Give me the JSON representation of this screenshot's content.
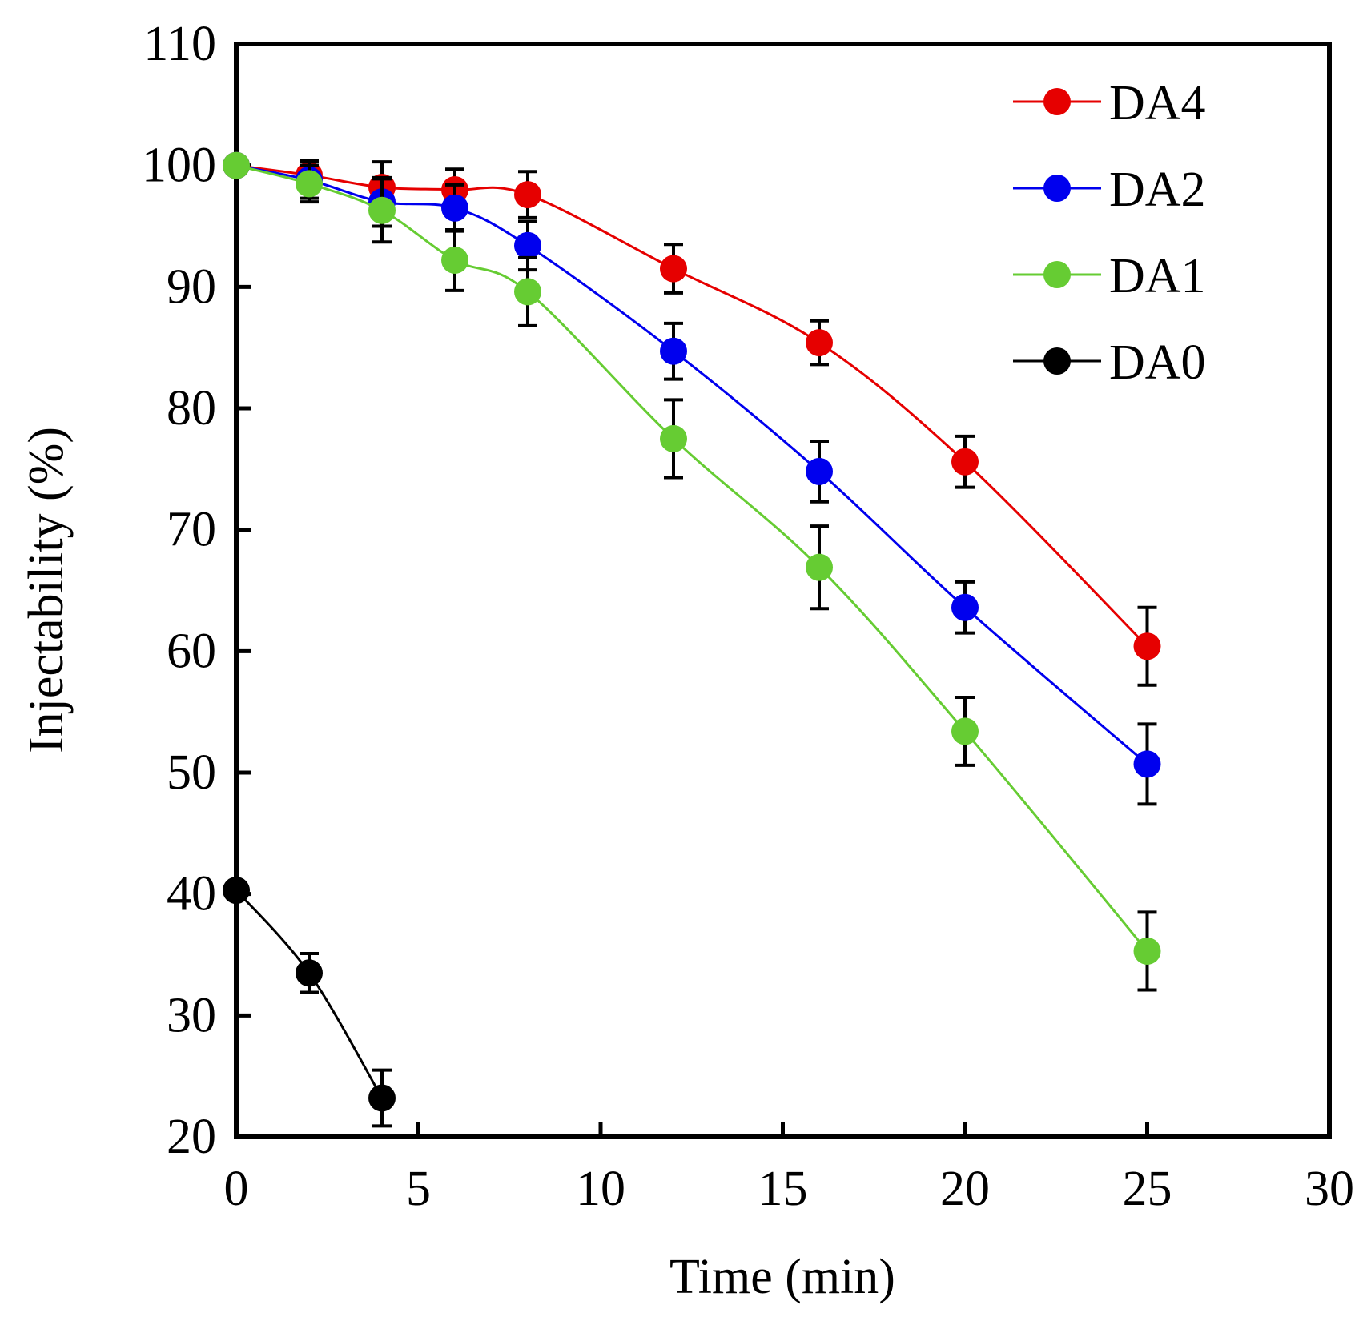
{
  "chart_data": {
    "type": "line",
    "title": "",
    "xlabel": "Time (min)",
    "ylabel": "Injectability (%)",
    "xlim": [
      0,
      30
    ],
    "ylim": [
      20,
      110
    ],
    "xticks": [
      0,
      5,
      10,
      15,
      20,
      25,
      30
    ],
    "yticks": [
      20,
      30,
      40,
      50,
      60,
      70,
      80,
      90,
      100,
      110
    ],
    "xtick_labels": [
      "0",
      "5",
      "10",
      "15",
      "20",
      "25",
      "30"
    ],
    "ytick_labels": [
      "20",
      "30",
      "40",
      "50",
      "60",
      "70",
      "80",
      "90",
      "100",
      "110"
    ],
    "grid": false,
    "legend_position": "top-right",
    "series": [
      {
        "name": "DA4",
        "color": "#e60000",
        "x": [
          0,
          2,
          4,
          6,
          8,
          12,
          16,
          20,
          25
        ],
        "y": [
          100,
          99.2,
          98.2,
          98.0,
          97.6,
          91.5,
          85.4,
          75.6,
          60.4
        ],
        "err": [
          0,
          1.2,
          2.1,
          1.7,
          1.9,
          2.0,
          1.8,
          2.1,
          3.2
        ]
      },
      {
        "name": "DA2",
        "color": "#0000ee",
        "x": [
          0,
          2,
          4,
          6,
          8,
          12,
          16,
          20,
          25
        ],
        "y": [
          100,
          98.8,
          97.0,
          96.5,
          93.4,
          84.7,
          74.8,
          63.6,
          50.7
        ],
        "err": [
          0,
          1.5,
          2.0,
          1.9,
          2.0,
          2.3,
          2.5,
          2.1,
          3.3
        ]
      },
      {
        "name": "DA1",
        "color": "#66cc33",
        "x": [
          0,
          2,
          4,
          6,
          8,
          12,
          16,
          20,
          25
        ],
        "y": [
          100,
          98.5,
          96.3,
          92.2,
          89.6,
          77.5,
          66.9,
          53.4,
          35.3
        ],
        "err": [
          0,
          1.5,
          2.6,
          2.5,
          2.8,
          3.2,
          3.4,
          2.8,
          3.2
        ]
      },
      {
        "name": "DA0",
        "color": "#000000",
        "x": [
          0,
          2,
          4
        ],
        "y": [
          40.3,
          33.5,
          23.2
        ],
        "err": [
          0,
          1.6,
          2.3
        ]
      }
    ]
  }
}
